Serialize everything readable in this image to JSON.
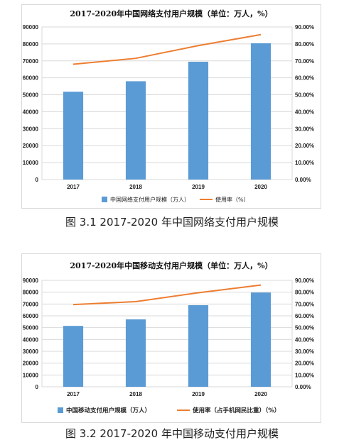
{
  "colors": {
    "bar": "#5b9bd5",
    "line": "#ed7d31",
    "grid": "#d9d9d9",
    "axis": "#888888"
  },
  "chart_data": [
    {
      "type": "bar",
      "title": "2017-2020年中国网络支付用户规模（单位：万人，%）",
      "categories": [
        "2017",
        "2018",
        "2019",
        "2020"
      ],
      "series": [
        {
          "name": "中国网络支付用户规模（万人）",
          "type": "bar",
          "axis": "left",
          "values": [
            51800,
            58000,
            69500,
            80400
          ]
        },
        {
          "name": "使用率（%）",
          "type": "line",
          "axis": "right",
          "values": [
            68.0,
            71.5,
            79.0,
            85.5
          ]
        }
      ],
      "ylim": [
        0,
        90000
      ],
      "y_ticks": [
        "0",
        "10000",
        "20000",
        "30000",
        "40000",
        "50000",
        "60000",
        "70000",
        "80000",
        "90000"
      ],
      "y2lim": [
        0,
        90
      ],
      "y2_ticks": [
        "0.00%",
        "10.00%",
        "20.00%",
        "30.00%",
        "40.00%",
        "50.00%",
        "60.00%",
        "70.00%",
        "80.00%",
        "90.00%"
      ],
      "grid": true,
      "legend": "bottom"
    },
    {
      "type": "bar",
      "title": "2017-2020年中国移动支付用户规模（单位：万人，%）",
      "categories": [
        "2017",
        "2018",
        "2019",
        "2020"
      ],
      "series": [
        {
          "name": "中国移动支付用户规模（万人）",
          "type": "bar",
          "axis": "left",
          "values": [
            51500,
            57000,
            69000,
            79700
          ]
        },
        {
          "name": "使用率（占手机网民比重）（%）",
          "type": "line",
          "axis": "right",
          "values": [
            69.5,
            72.0,
            79.5,
            86.0
          ]
        }
      ],
      "ylim": [
        0,
        90000
      ],
      "y_ticks": [
        "0",
        "10000",
        "20000",
        "30000",
        "40000",
        "50000",
        "60000",
        "70000",
        "80000",
        "90000"
      ],
      "y2lim": [
        0,
        90
      ],
      "y2_ticks": [
        "0.00%",
        "10.00%",
        "20.00%",
        "30.00%",
        "40.00%",
        "50.00%",
        "60.00%",
        "70.00%",
        "80.00%",
        "90.00%"
      ],
      "grid": true,
      "legend": "bottom"
    }
  ],
  "captions": [
    "图 3.1 2017-2020 年中国网络支付用户规模",
    "图 3.2 2017-2020 年中国移动支付用户规模"
  ]
}
